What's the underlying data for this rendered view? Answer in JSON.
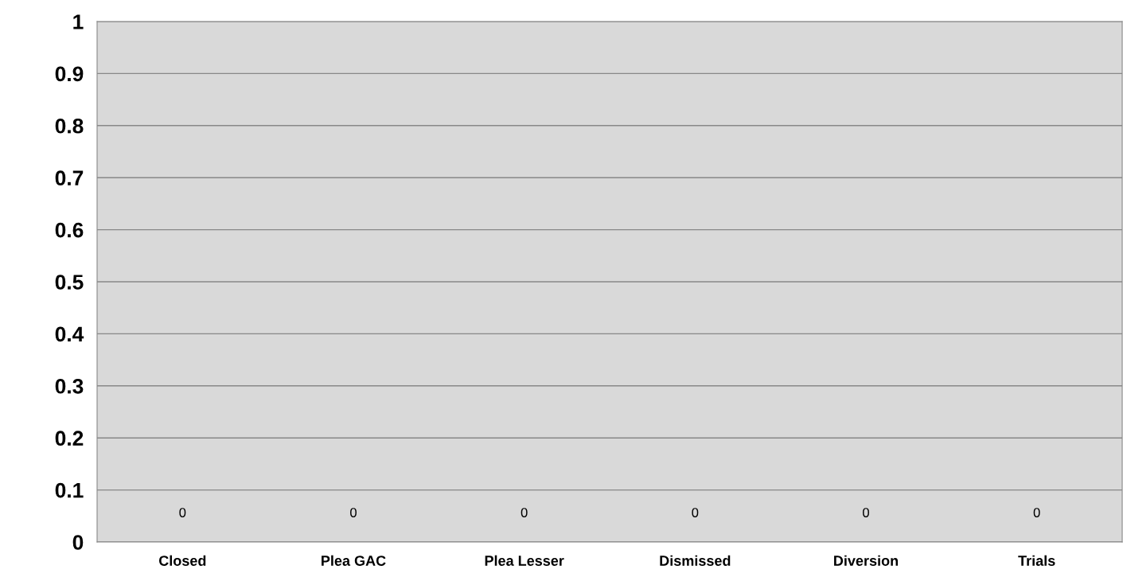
{
  "chart_data": {
    "type": "bar",
    "categories": [
      "Closed",
      "Plea GAC",
      "Plea Lesser",
      "Dismissed",
      "Diversion",
      "Trials"
    ],
    "values": [
      0,
      0,
      0,
      0,
      0,
      0
    ],
    "ylim": [
      0,
      1
    ],
    "yticks": [
      0,
      0.1,
      0.2,
      0.3,
      0.4,
      0.5,
      0.6,
      0.7,
      0.8,
      0.9,
      1
    ],
    "grid": "y",
    "data_labels": true
  }
}
